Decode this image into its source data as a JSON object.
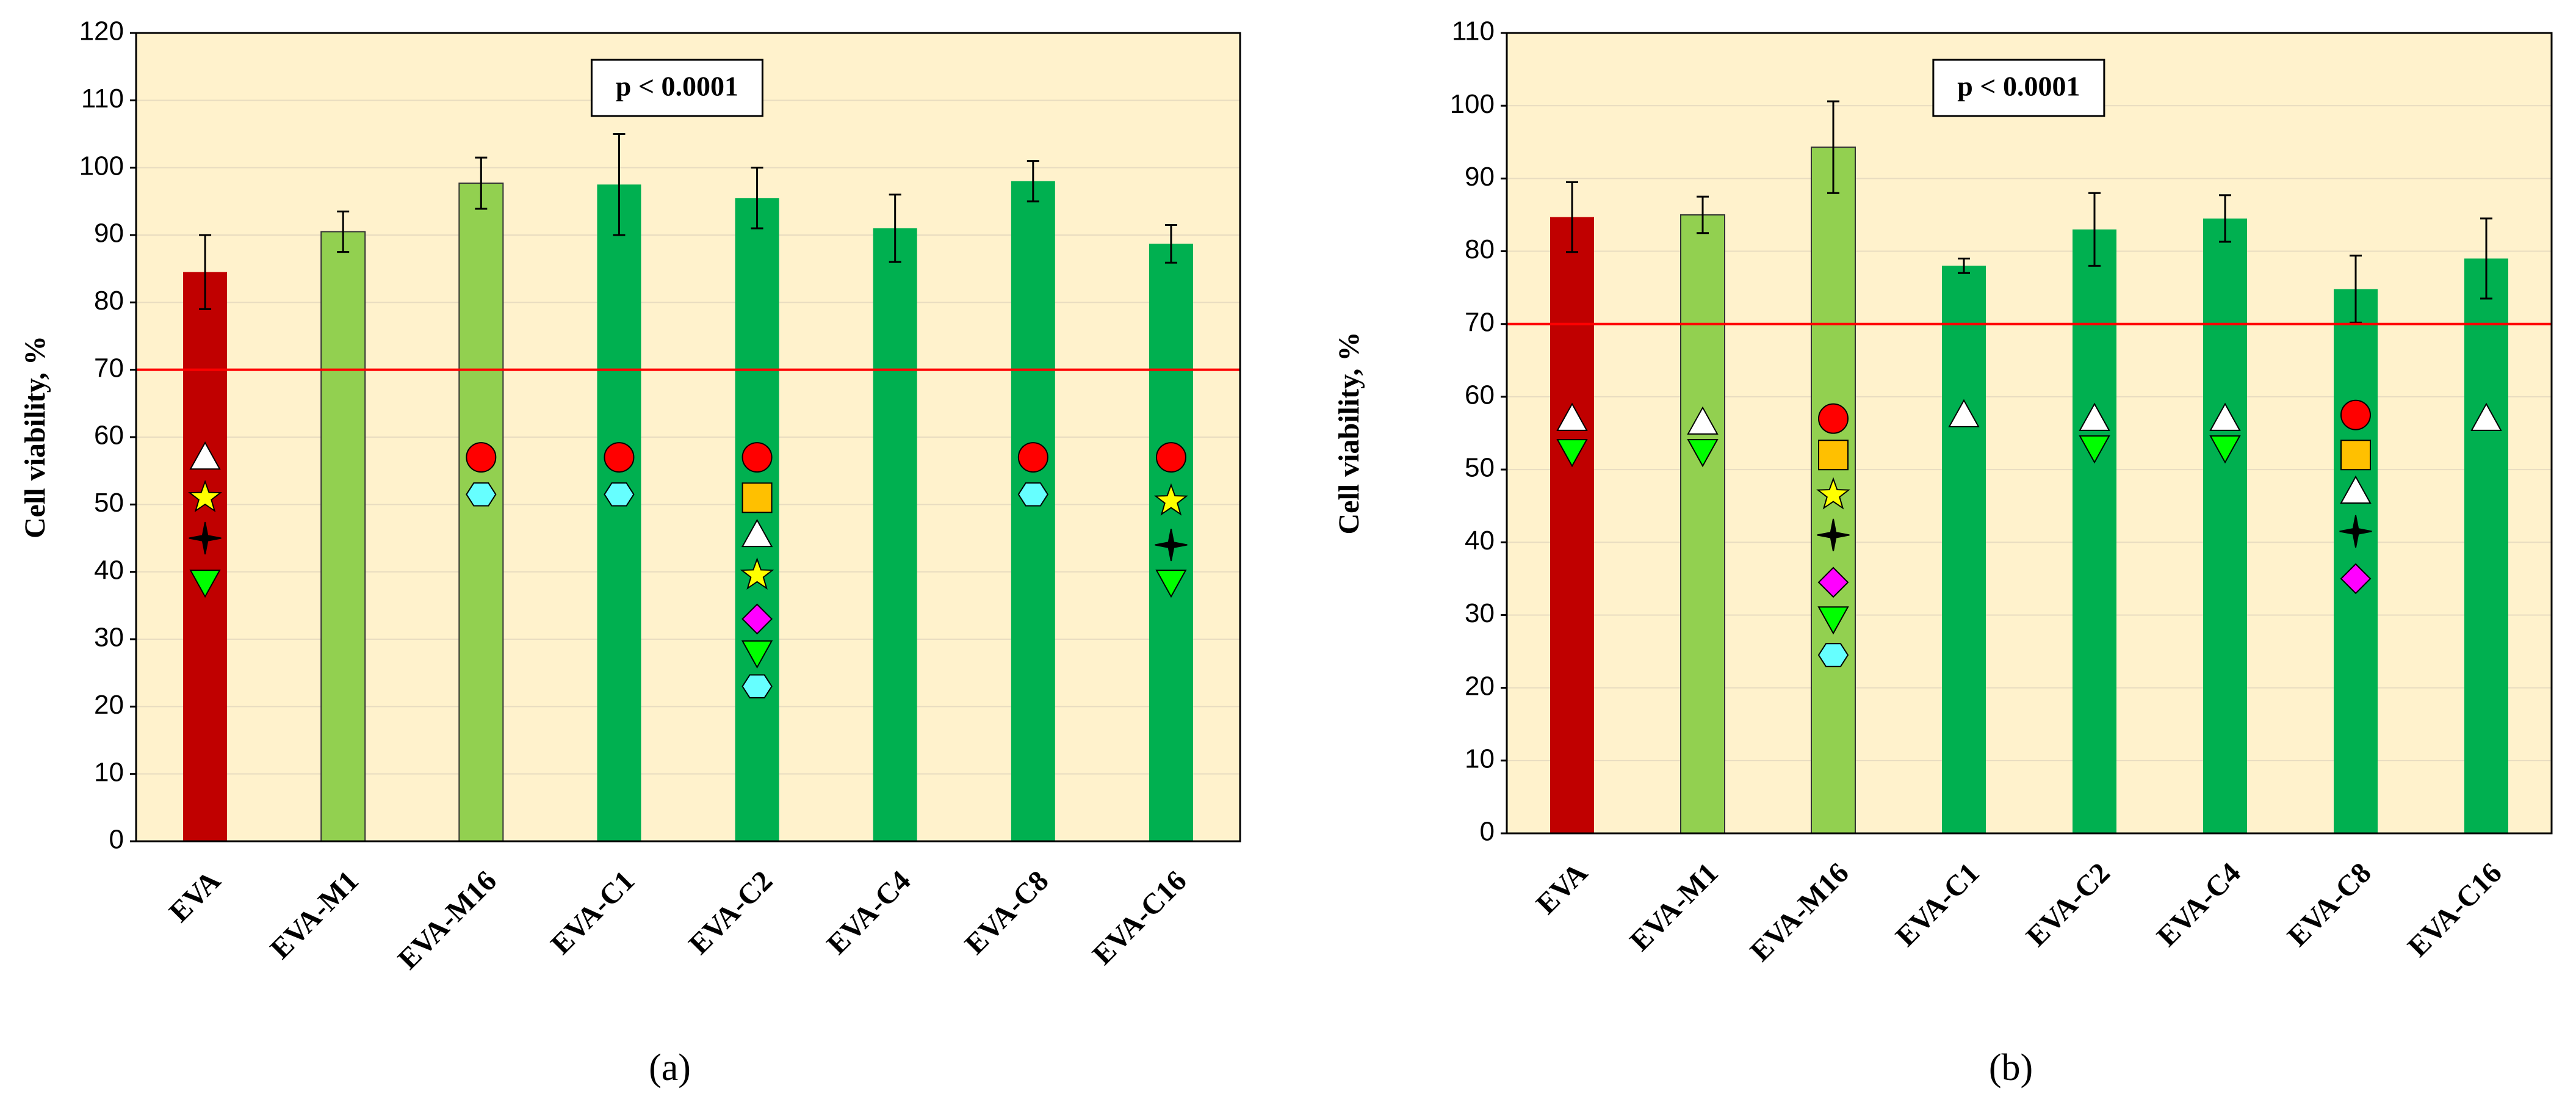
{
  "chart_data": [
    {
      "type": "bar",
      "label": "(a)",
      "ylabel": "Cell viability, %",
      "annotation": "p < 0.0001",
      "categories": [
        "EVA",
        "EVA-M1",
        "EVA-M16",
        "EVA-C1",
        "EVA-C2",
        "EVA-C4",
        "EVA-C8",
        "EVA-C16"
      ],
      "values": [
        84.5,
        90.5,
        97.7,
        97.5,
        95.5,
        91,
        98,
        88.7
      ],
      "errors": [
        5.5,
        3,
        3.8,
        7.5,
        4.5,
        5,
        3,
        2.8
      ],
      "colors": [
        "#c00000",
        "#92d050",
        "#92d050",
        "#00b050",
        "#00b050",
        "#00b050",
        "#00b050",
        "#00b050"
      ],
      "threshold": 70,
      "threshold_color": "#ff0000",
      "background": "#fff2cc",
      "grid": true,
      "ylim": [
        0,
        120
      ],
      "yticks": [
        0,
        10,
        20,
        30,
        40,
        50,
        60,
        70,
        80,
        90,
        100,
        110,
        120
      ]
    },
    {
      "type": "bar",
      "label": "(b)",
      "ylabel": "Cell viability, %",
      "annotation": "p < 0.0001",
      "categories": [
        "EVA",
        "EVA-M1",
        "EVA-M16",
        "EVA-C1",
        "EVA-C2",
        "EVA-C4",
        "EVA-C8",
        "EVA-C16"
      ],
      "values": [
        84.7,
        85,
        94.3,
        78,
        83,
        84.5,
        74.8,
        79
      ],
      "errors": [
        4.8,
        2.5,
        6.3,
        1,
        5,
        3.2,
        4.6,
        5.5
      ],
      "colors": [
        "#c00000",
        "#92d050",
        "#92d050",
        "#00b050",
        "#00b050",
        "#00b050",
        "#00b050",
        "#00b050"
      ],
      "threshold": 70,
      "threshold_color": "#ff0000",
      "background": "#fff2cc",
      "grid": true,
      "ylim": [
        0,
        110
      ],
      "yticks": [
        0,
        10,
        20,
        30,
        40,
        50,
        60,
        70,
        80,
        90,
        100,
        110
      ]
    }
  ]
}
